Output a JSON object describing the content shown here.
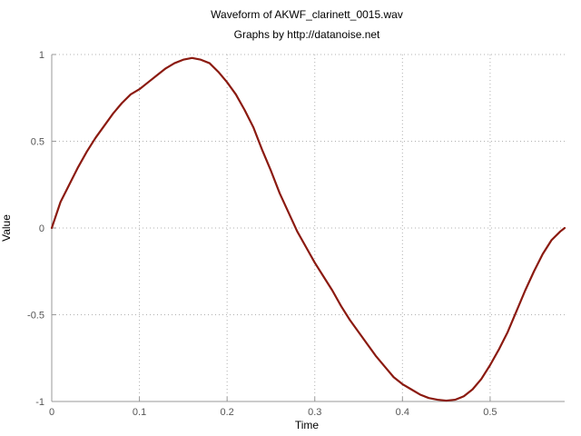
{
  "chart_data": {
    "type": "line",
    "title": "Waveform of AKWF_clarinett_0015.wav",
    "subtitle": "Graphs by http://datanoise.net",
    "xlabel": "Time",
    "ylabel": "Value",
    "xlim": [
      0,
      0.585
    ],
    "ylim": [
      -1,
      1
    ],
    "xticks": [
      0,
      0.1,
      0.2,
      0.3,
      0.4,
      0.5
    ],
    "xtick_labels": [
      "0",
      "0.1",
      "0.2",
      "0.3",
      "0.4",
      "0.5"
    ],
    "yticks": [
      -1,
      -0.5,
      0,
      0.5,
      1
    ],
    "ytick_labels": [
      "-1",
      "-0.5",
      "0",
      "0.5",
      "1"
    ],
    "grid": true,
    "series_color": "#8b1a10",
    "series": [
      {
        "x": [
          0,
          0.01,
          0.02,
          0.03,
          0.04,
          0.05,
          0.06,
          0.07,
          0.08,
          0.09,
          0.1,
          0.11,
          0.12,
          0.13,
          0.14,
          0.15,
          0.16,
          0.17,
          0.18,
          0.19,
          0.2,
          0.21,
          0.22,
          0.23,
          0.24,
          0.25,
          0.26,
          0.27,
          0.28,
          0.29,
          0.3,
          0.31,
          0.32,
          0.33,
          0.34,
          0.35,
          0.36,
          0.37,
          0.38,
          0.39,
          0.4,
          0.41,
          0.42,
          0.43,
          0.44,
          0.45,
          0.46,
          0.47,
          0.48,
          0.49,
          0.5,
          0.51,
          0.52,
          0.53,
          0.54,
          0.55,
          0.56,
          0.57,
          0.58,
          0.585
        ],
        "y": [
          0,
          0.15,
          0.25,
          0.35,
          0.44,
          0.52,
          0.59,
          0.66,
          0.72,
          0.77,
          0.8,
          0.84,
          0.88,
          0.92,
          0.95,
          0.97,
          0.98,
          0.97,
          0.95,
          0.9,
          0.84,
          0.77,
          0.68,
          0.58,
          0.45,
          0.33,
          0.2,
          0.09,
          -0.02,
          -0.11,
          -0.2,
          -0.28,
          -0.36,
          -0.45,
          -0.53,
          -0.6,
          -0.67,
          -0.74,
          -0.8,
          -0.86,
          -0.9,
          -0.93,
          -0.96,
          -0.98,
          -0.99,
          -0.995,
          -0.99,
          -0.97,
          -0.93,
          -0.87,
          -0.79,
          -0.7,
          -0.6,
          -0.48,
          -0.36,
          -0.25,
          -0.15,
          -0.07,
          -0.02,
          0
        ]
      }
    ]
  }
}
